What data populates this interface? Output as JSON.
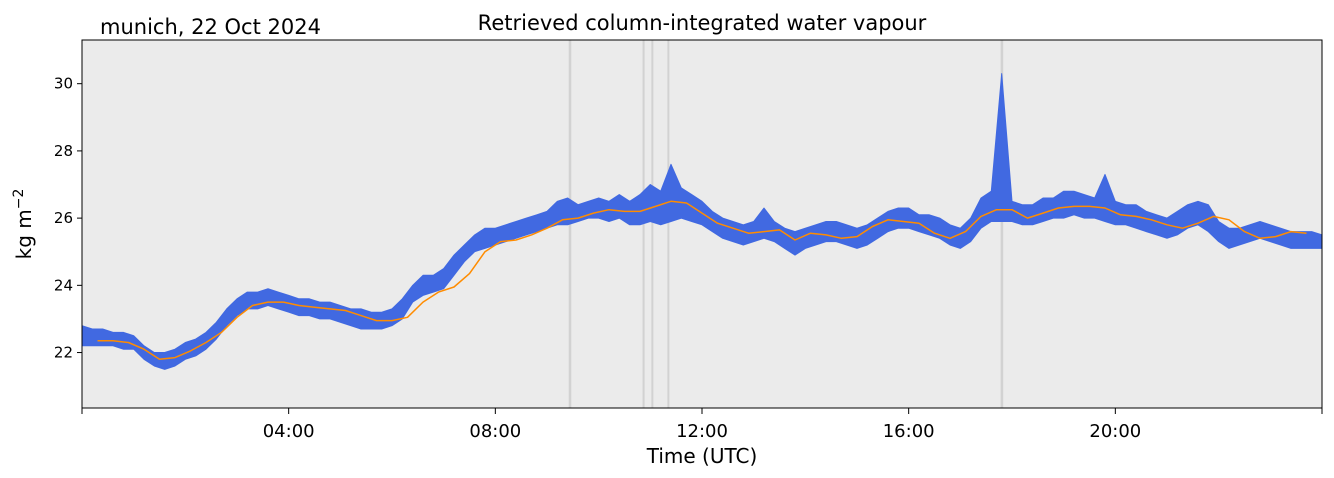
{
  "location_date": "munich, 22 Oct 2024",
  "chart_data": {
    "type": "line",
    "title": "Retrieved column-integrated water vapour",
    "xlabel": "Time (UTC)",
    "ylabel": "kg m",
    "ylabel_exponent": "−2",
    "xlim": [
      0,
      24
    ],
    "ylim": [
      20.35,
      31.3
    ],
    "x_ticks": [
      4,
      8,
      12,
      16,
      20
    ],
    "x_tick_labels": [
      "04:00",
      "08:00",
      "12:00",
      "16:00",
      "20:00"
    ],
    "y_ticks": [
      22,
      24,
      26,
      28,
      30
    ],
    "y_tick_labels": [
      "22",
      "24",
      "26",
      "28",
      "30"
    ],
    "grid": false,
    "plot_background": "#ebebeb",
    "gap_intervals_hours": [
      [
        9.42,
        9.47
      ],
      [
        10.85,
        10.86
      ],
      [
        11.02,
        11.03
      ],
      [
        11.33,
        11.35
      ],
      [
        17.78,
        17.83
      ]
    ],
    "series": [
      {
        "role": "raw retrievals",
        "color": "#4169e1",
        "x": [
          0.0,
          0.2,
          0.4,
          0.6,
          0.8,
          1.0,
          1.2,
          1.4,
          1.6,
          1.8,
          2.0,
          2.2,
          2.4,
          2.6,
          2.8,
          3.0,
          3.2,
          3.4,
          3.6,
          3.8,
          4.0,
          4.2,
          4.4,
          4.6,
          4.8,
          5.0,
          5.2,
          5.4,
          5.6,
          5.8,
          6.0,
          6.2,
          6.4,
          6.6,
          6.8,
          7.0,
          7.2,
          7.4,
          7.6,
          7.8,
          8.0,
          8.2,
          8.4,
          8.6,
          8.8,
          9.0,
          9.2,
          9.4,
          9.6,
          9.8,
          10.0,
          10.2,
          10.4,
          10.6,
          10.8,
          11.0,
          11.2,
          11.4,
          11.6,
          11.8,
          12.0,
          12.2,
          12.4,
          12.6,
          12.8,
          13.0,
          13.2,
          13.4,
          13.6,
          13.8,
          14.0,
          14.2,
          14.4,
          14.6,
          14.8,
          15.0,
          15.2,
          15.4,
          15.6,
          15.8,
          16.0,
          16.2,
          16.4,
          16.6,
          16.8,
          17.0,
          17.2,
          17.4,
          17.6,
          17.8,
          18.0,
          18.2,
          18.4,
          18.6,
          18.8,
          19.0,
          19.2,
          19.4,
          19.6,
          19.8,
          20.0,
          20.2,
          20.4,
          20.6,
          20.8,
          21.0,
          21.2,
          21.4,
          21.6,
          21.8,
          22.0,
          22.2,
          22.4,
          22.6,
          22.8,
          23.0,
          23.2,
          23.4,
          23.6,
          23.8,
          24.0
        ],
        "lower": [
          22.2,
          22.2,
          22.2,
          22.2,
          22.1,
          22.1,
          21.8,
          21.6,
          21.5,
          21.6,
          21.8,
          21.9,
          22.1,
          22.4,
          22.8,
          23.1,
          23.3,
          23.3,
          23.4,
          23.3,
          23.2,
          23.1,
          23.1,
          23.0,
          23.0,
          22.9,
          22.8,
          22.7,
          22.7,
          22.7,
          22.8,
          23.0,
          23.5,
          23.7,
          23.8,
          23.9,
          24.3,
          24.7,
          25.0,
          25.1,
          25.2,
          25.3,
          25.4,
          25.5,
          25.6,
          25.7,
          25.8,
          25.8,
          25.9,
          26.0,
          26.0,
          25.9,
          26.0,
          25.8,
          25.8,
          25.9,
          25.8,
          25.9,
          26.0,
          25.9,
          25.8,
          25.6,
          25.4,
          25.3,
          25.2,
          25.3,
          25.4,
          25.3,
          25.1,
          24.9,
          25.1,
          25.2,
          25.3,
          25.3,
          25.2,
          25.1,
          25.2,
          25.4,
          25.6,
          25.7,
          25.7,
          25.6,
          25.5,
          25.4,
          25.2,
          25.1,
          25.3,
          25.7,
          25.9,
          25.9,
          25.9,
          25.8,
          25.8,
          25.9,
          26.0,
          26.0,
          26.1,
          26.0,
          26.0,
          25.9,
          25.8,
          25.8,
          25.7,
          25.6,
          25.5,
          25.4,
          25.5,
          25.7,
          25.8,
          25.6,
          25.3,
          25.1,
          25.2,
          25.3,
          25.4,
          25.3,
          25.2,
          25.1,
          25.1,
          25.1,
          25.1
        ],
        "upper": [
          22.8,
          22.7,
          22.7,
          22.6,
          22.6,
          22.5,
          22.2,
          22.0,
          22.0,
          22.1,
          22.3,
          22.4,
          22.6,
          22.9,
          23.3,
          23.6,
          23.8,
          23.8,
          23.9,
          23.8,
          23.7,
          23.6,
          23.6,
          23.5,
          23.5,
          23.4,
          23.3,
          23.3,
          23.2,
          23.2,
          23.3,
          23.6,
          24.0,
          24.3,
          24.3,
          24.5,
          24.9,
          25.2,
          25.5,
          25.7,
          25.7,
          25.8,
          25.9,
          26.0,
          26.1,
          26.2,
          26.5,
          26.6,
          26.4,
          26.5,
          26.6,
          26.5,
          26.7,
          26.5,
          26.7,
          27.0,
          26.8,
          27.6,
          26.9,
          26.7,
          26.5,
          26.2,
          26.0,
          25.9,
          25.8,
          25.9,
          26.3,
          25.9,
          25.7,
          25.6,
          25.7,
          25.8,
          25.9,
          25.9,
          25.8,
          25.7,
          25.8,
          26.0,
          26.2,
          26.3,
          26.3,
          26.1,
          26.1,
          26.0,
          25.8,
          25.7,
          26.0,
          26.6,
          26.8,
          30.3,
          26.5,
          26.4,
          26.4,
          26.6,
          26.6,
          26.8,
          26.8,
          26.7,
          26.6,
          27.3,
          26.5,
          26.4,
          26.4,
          26.2,
          26.1,
          26.0,
          26.2,
          26.4,
          26.5,
          26.4,
          25.9,
          25.7,
          25.7,
          25.8,
          25.9,
          25.8,
          25.7,
          25.6,
          25.6,
          25.6,
          25.5
        ]
      },
      {
        "role": "smoothed",
        "color": "#ff8c00",
        "x": [
          0.3,
          0.6,
          0.9,
          1.2,
          1.5,
          1.8,
          2.1,
          2.4,
          2.7,
          3.0,
          3.3,
          3.6,
          3.9,
          4.2,
          4.5,
          4.8,
          5.1,
          5.4,
          5.7,
          6.0,
          6.3,
          6.6,
          6.9,
          7.2,
          7.5,
          7.8,
          8.1,
          8.4,
          8.7,
          9.0,
          9.3,
          9.6,
          9.9,
          10.2,
          10.5,
          10.8,
          11.1,
          11.4,
          11.7,
          12.0,
          12.3,
          12.6,
          12.9,
          13.2,
          13.5,
          13.8,
          14.1,
          14.4,
          14.7,
          15.0,
          15.3,
          15.6,
          15.9,
          16.2,
          16.5,
          16.8,
          17.1,
          17.4,
          17.7,
          18.0,
          18.3,
          18.6,
          18.9,
          19.2,
          19.5,
          19.8,
          20.1,
          20.4,
          20.7,
          21.0,
          21.3,
          21.6,
          21.9,
          22.2,
          22.5,
          22.8,
          23.1,
          23.4,
          23.7
        ],
        "y": [
          22.35,
          22.35,
          22.3,
          22.1,
          21.8,
          21.85,
          22.05,
          22.3,
          22.6,
          23.05,
          23.4,
          23.5,
          23.5,
          23.4,
          23.35,
          23.3,
          23.25,
          23.1,
          22.95,
          22.95,
          23.05,
          23.5,
          23.8,
          23.95,
          24.35,
          25.0,
          25.3,
          25.35,
          25.5,
          25.7,
          25.95,
          26.0,
          26.15,
          26.25,
          26.2,
          26.2,
          26.35,
          26.5,
          26.45,
          26.15,
          25.85,
          25.7,
          25.55,
          25.6,
          25.65,
          25.35,
          25.55,
          25.5,
          25.4,
          25.45,
          25.75,
          25.95,
          25.9,
          25.85,
          25.55,
          25.4,
          25.6,
          26.05,
          26.25,
          26.25,
          26.0,
          26.15,
          26.3,
          26.35,
          26.35,
          26.3,
          26.1,
          26.05,
          25.95,
          25.8,
          25.7,
          25.85,
          26.05,
          25.95,
          25.6,
          25.4,
          25.45,
          25.6,
          25.55
        ]
      }
    ]
  }
}
